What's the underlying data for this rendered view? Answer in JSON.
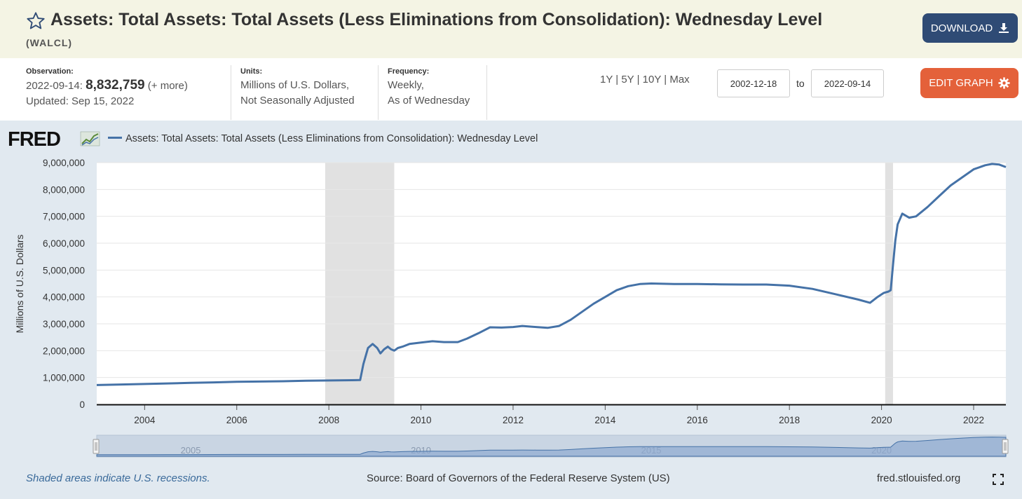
{
  "header": {
    "title": "Assets: Total Assets: Total Assets (Less Eliminations from Consolidation): Wednesday Level",
    "series_id": "(WALCL)",
    "download_label": "DOWNLOAD"
  },
  "meta": {
    "observation_label": "Observation:",
    "observation_date": "2022-09-14:",
    "observation_value": "8,832,759",
    "observation_more": "(+ more)",
    "updated": "Updated: Sep 15, 2022",
    "units_label": "Units:",
    "units_line1": "Millions of U.S. Dollars,",
    "units_line2": "Not Seasonally Adjusted",
    "frequency_label": "Frequency:",
    "frequency_line1": "Weekly,",
    "frequency_line2": "As of Wednesday"
  },
  "controls": {
    "range_1y": "1Y",
    "range_5y": "5Y",
    "range_10y": "10Y",
    "range_max": "Max",
    "range_sep": "|",
    "start_date": "2002-12-18",
    "to_label": "to",
    "end_date": "2022-09-14",
    "edit_graph_label": "EDIT GRAPH"
  },
  "colors": {
    "line": "#4572a7",
    "recession": "#e1e1e1",
    "title_bar": "#f4f4e4",
    "graph_bg": "#e1e9f0",
    "download_btn": "#2f4b75",
    "edit_btn": "#e4613a"
  },
  "footer": {
    "recession_note": "Shaded areas indicate U.S. recessions.",
    "source": "Source: Board of Governors of the Federal Reserve System (US)",
    "site": "fred.stlouisfed.org"
  },
  "chart_data": {
    "type": "line",
    "logo": "FRED",
    "title": "",
    "ylabel": "Millions of U.S. Dollars",
    "xlabel": "",
    "legend_position": "top-left",
    "grid": true,
    "xlim": [
      2002.96,
      2022.7
    ],
    "ylim": [
      0,
      9000000
    ],
    "y_ticks": [
      0,
      1000000,
      2000000,
      3000000,
      4000000,
      5000000,
      6000000,
      7000000,
      8000000,
      9000000
    ],
    "y_tick_labels": [
      "0",
      "1,000,000",
      "2,000,000",
      "3,000,000",
      "4,000,000",
      "5,000,000",
      "6,000,000",
      "7,000,000",
      "8,000,000",
      "9,000,000"
    ],
    "x_ticks": [
      2004,
      2006,
      2008,
      2010,
      2012,
      2014,
      2016,
      2018,
      2020,
      2022
    ],
    "x_tick_labels": [
      "2004",
      "2006",
      "2008",
      "2010",
      "2012",
      "2014",
      "2016",
      "2018",
      "2020",
      "2022"
    ],
    "recessions": [
      [
        2007.92,
        2009.42
      ],
      [
        2020.08,
        2020.25
      ]
    ],
    "navigator_labels": [
      "2005",
      "2010",
      "2015",
      "2020"
    ],
    "navigator_ticks": [
      2005,
      2010,
      2015,
      2020
    ],
    "series": [
      {
        "name": "Assets: Total Assets: Total Assets (Less Eliminations from Consolidation): Wednesday Level",
        "x": [
          2002.96,
          2003.5,
          2004.0,
          2004.5,
          2005.0,
          2005.5,
          2006.0,
          2006.5,
          2007.0,
          2007.5,
          2008.0,
          2008.5,
          2008.68,
          2008.75,
          2008.85,
          2008.95,
          2009.05,
          2009.12,
          2009.2,
          2009.28,
          2009.35,
          2009.42,
          2009.5,
          2009.6,
          2009.75,
          2010.0,
          2010.25,
          2010.5,
          2010.8,
          2011.0,
          2011.25,
          2011.5,
          2011.75,
          2012.0,
          2012.2,
          2012.5,
          2012.75,
          2013.0,
          2013.25,
          2013.5,
          2013.75,
          2014.0,
          2014.25,
          2014.5,
          2014.75,
          2015.0,
          2015.5,
          2016.0,
          2016.5,
          2017.0,
          2017.5,
          2018.0,
          2018.5,
          2019.0,
          2019.5,
          2019.75,
          2019.9,
          2020.05,
          2020.15,
          2020.2,
          2020.25,
          2020.3,
          2020.35,
          2020.45,
          2020.6,
          2020.75,
          2021.0,
          2021.25,
          2021.5,
          2021.75,
          2022.0,
          2022.25,
          2022.4,
          2022.55,
          2022.7
        ],
        "values": [
          720000,
          740000,
          760000,
          780000,
          800000,
          820000,
          840000,
          850000,
          860000,
          880000,
          890000,
          900000,
          905000,
          1500000,
          2100000,
          2250000,
          2100000,
          1900000,
          2050000,
          2150000,
          2050000,
          2000000,
          2100000,
          2150000,
          2250000,
          2300000,
          2350000,
          2320000,
          2320000,
          2450000,
          2650000,
          2870000,
          2860000,
          2880000,
          2920000,
          2880000,
          2850000,
          2920000,
          3150000,
          3450000,
          3750000,
          4000000,
          4250000,
          4400000,
          4480000,
          4500000,
          4480000,
          4480000,
          4470000,
          4460000,
          4460000,
          4420000,
          4300000,
          4100000,
          3900000,
          3780000,
          3980000,
          4150000,
          4200000,
          4250000,
          5200000,
          6100000,
          6700000,
          7100000,
          6950000,
          7000000,
          7350000,
          7750000,
          8150000,
          8450000,
          8750000,
          8900000,
          8950000,
          8930000,
          8832759
        ]
      }
    ]
  }
}
